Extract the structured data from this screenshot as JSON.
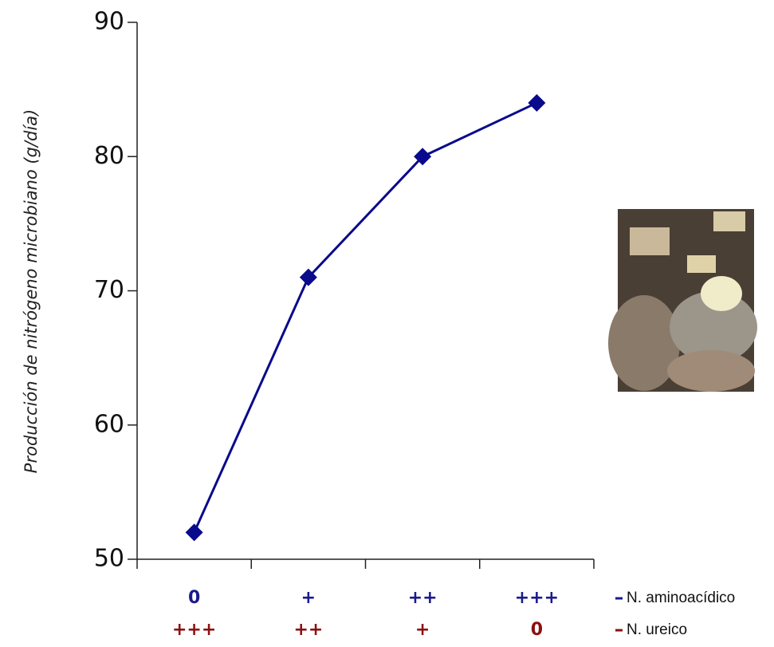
{
  "chart_data": {
    "type": "line",
    "y_label": "Producción de nitrógeno microbiano (g/día)",
    "category_rows": [
      {
        "name": "N. aminoacídico",
        "color": "#1a1a8c",
        "labels": [
          "0",
          "+",
          "++",
          "+++"
        ]
      },
      {
        "name": "N. ureico",
        "color": "#8b1010",
        "labels": [
          "+++",
          "++",
          "+",
          "0"
        ]
      }
    ],
    "series": [
      {
        "color": "#0a0a8c",
        "values": [
          52,
          71,
          80,
          84
        ]
      }
    ],
    "ylim": [
      50,
      90
    ],
    "yticks": [
      50,
      60,
      70,
      80,
      90
    ]
  }
}
